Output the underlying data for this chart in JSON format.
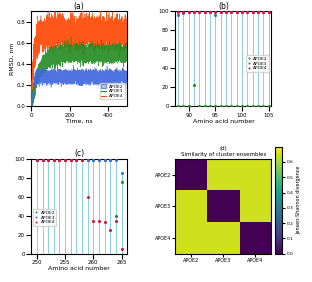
{
  "title_a": "(a)",
  "title_b": "(b)",
  "title_c": "(c)",
  "title_d": "(d)",
  "panel_a": {
    "ylabel": "RMSD, nm",
    "xlabel": "Time, ns",
    "xlim": [
      0,
      500
    ],
    "ylim": [
      0,
      0.9
    ],
    "yticks": [
      0.0,
      0.2,
      0.4,
      0.6,
      0.8
    ],
    "xticks": [
      0,
      200,
      400
    ],
    "legend": [
      "APOE2",
      "APOE3",
      "APOE4"
    ],
    "color_apoe2": "#4169E1",
    "color_apoe3": "#228B22",
    "color_apoe4": "#FF4500",
    "color_apoe2_band": "#B0C4DE"
  },
  "panel_b": {
    "xlabel": "Amino acid number",
    "xlim": [
      87.5,
      105.5
    ],
    "ylim": [
      0,
      100
    ],
    "yticks": [
      0,
      20,
      40,
      60,
      80,
      100
    ],
    "xticks": [
      90,
      95,
      100,
      105
    ],
    "legend": [
      "APOE2",
      "APOE3",
      "APOE4"
    ],
    "color_apoe2": "#228B22",
    "color_apoe3": "#4169E1",
    "color_apoe4": "#DC143C",
    "color_line": "#87CEEB",
    "amino_acids": [
      88,
      89,
      90,
      91,
      92,
      93,
      94,
      95,
      96,
      97,
      98,
      99,
      100,
      101,
      102,
      103,
      104,
      105
    ],
    "apoe2_vals": [
      0,
      0,
      0,
      23,
      0,
      0,
      0,
      0,
      0,
      0,
      0,
      0,
      0,
      0,
      0,
      0,
      0,
      0
    ],
    "apoe3_vals": [
      96,
      98,
      99,
      99,
      99,
      99,
      99,
      96,
      99,
      99,
      99,
      99,
      99,
      99,
      99,
      99,
      99,
      99
    ],
    "apoe4_vals": [
      99,
      99,
      99,
      99,
      99,
      99,
      99,
      99,
      99,
      99,
      99,
      99,
      99,
      99,
      99,
      99,
      99,
      99
    ]
  },
  "panel_c": {
    "xlabel": "Amino acid number",
    "xlim": [
      249,
      266
    ],
    "ylim": [
      0,
      100
    ],
    "yticks": [
      0,
      20,
      40,
      60,
      80,
      100
    ],
    "xticks": [
      250,
      255,
      260,
      265
    ],
    "legend": [
      "APOE2",
      "APOE3",
      "APOE4"
    ],
    "color_apoe2": "#228B22",
    "color_apoe3": "#4169E1",
    "color_apoe4": "#DC143C",
    "color_line": "#87CEEB",
    "amino_acids": [
      250,
      251,
      252,
      253,
      254,
      255,
      256,
      257,
      258,
      259,
      260,
      261,
      262,
      263,
      264,
      265
    ],
    "apoe2_vals": [
      99,
      99,
      99,
      99,
      99,
      99,
      99,
      99,
      99,
      99,
      99,
      99,
      99,
      99,
      40,
      75
    ],
    "apoe3_vals": [
      99,
      99,
      99,
      99,
      99,
      99,
      99,
      99,
      99,
      99,
      99,
      99,
      99,
      99,
      99,
      85
    ],
    "apoe4_vals": [
      99,
      99,
      99,
      99,
      99,
      99,
      99,
      99,
      99,
      60,
      34,
      34,
      33,
      25,
      35,
      5
    ]
  },
  "panel_d": {
    "title_line1": "(d)",
    "title_line2": "Similarity of cluster ensembles",
    "cbar_label": "Jensen-Shannon divergence",
    "labels": [
      "APOE2",
      "APOE3",
      "APOE4"
    ],
    "matrix": [
      [
        0.0,
        0.65,
        0.65
      ],
      [
        0.65,
        0.0,
        0.65
      ],
      [
        0.65,
        0.65,
        0.0
      ]
    ],
    "cmap": "viridis",
    "vmin": 0,
    "vmax": 0.7,
    "cticks": [
      0,
      0.1,
      0.2,
      0.3,
      0.4,
      0.5,
      0.6
    ]
  },
  "fig_bg": "#FFFFFF"
}
